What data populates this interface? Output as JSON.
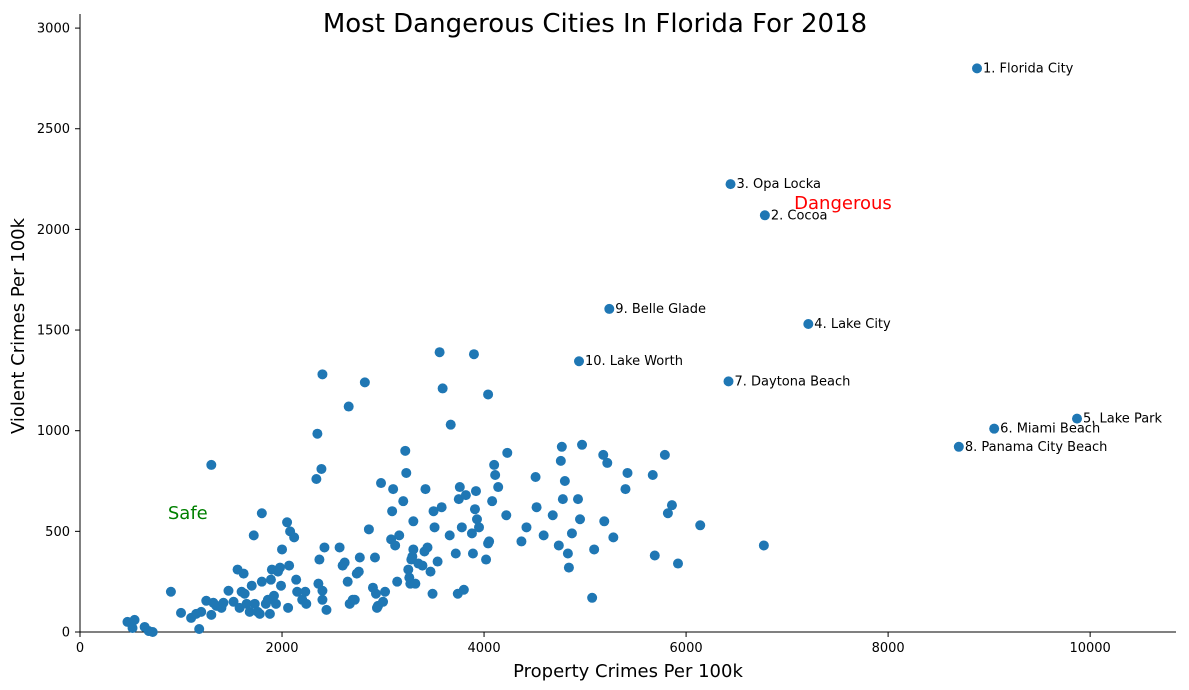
{
  "chart_data": {
    "type": "scatter",
    "title": "Most Dangerous Cities In Florida For 2018",
    "xlabel": "Property Crimes Per 100k",
    "ylabel": "Violent Crimes Per 100k",
    "xlim": [
      0,
      10850
    ],
    "ylim": [
      0,
      3070
    ],
    "xticks": [
      0,
      2000,
      4000,
      6000,
      8000,
      10000
    ],
    "yticks": [
      0,
      500,
      1000,
      1500,
      2000,
      2500,
      3000
    ],
    "marker_color": "#1f77b4",
    "points": [
      [
        470,
        50
      ],
      [
        520,
        20
      ],
      [
        540,
        60
      ],
      [
        640,
        25
      ],
      [
        680,
        5
      ],
      [
        720,
        0
      ],
      [
        900,
        200
      ],
      [
        1000,
        95
      ],
      [
        1100,
        70
      ],
      [
        1150,
        90
      ],
      [
        1200,
        100
      ],
      [
        1180,
        15
      ],
      [
        1250,
        155
      ],
      [
        1300,
        85
      ],
      [
        1320,
        145
      ],
      [
        1350,
        130
      ],
      [
        1400,
        120
      ],
      [
        1420,
        145
      ],
      [
        1470,
        205
      ],
      [
        1520,
        150
      ],
      [
        1560,
        310
      ],
      [
        1580,
        120
      ],
      [
        1600,
        200
      ],
      [
        1620,
        290
      ],
      [
        1630,
        190
      ],
      [
        1650,
        140
      ],
      [
        1680,
        100
      ],
      [
        1700,
        230
      ],
      [
        1720,
        480
      ],
      [
        1730,
        140
      ],
      [
        1760,
        100
      ],
      [
        1780,
        90
      ],
      [
        1800,
        250
      ],
      [
        1800,
        590
      ],
      [
        1840,
        140
      ],
      [
        1860,
        160
      ],
      [
        1880,
        90
      ],
      [
        1890,
        260
      ],
      [
        1900,
        310
      ],
      [
        1920,
        180
      ],
      [
        1940,
        140
      ],
      [
        1960,
        300
      ],
      [
        1980,
        320
      ],
      [
        1990,
        230
      ],
      [
        2000,
        410
      ],
      [
        2050,
        545
      ],
      [
        2060,
        120
      ],
      [
        2070,
        330
      ],
      [
        2080,
        500
      ],
      [
        2120,
        470
      ],
      [
        2140,
        260
      ],
      [
        2150,
        200
      ],
      [
        2200,
        160
      ],
      [
        2230,
        200
      ],
      [
        2240,
        140
      ],
      [
        2360,
        240
      ],
      [
        2370,
        360
      ],
      [
        2400,
        160
      ],
      [
        2400,
        205
      ],
      [
        2420,
        420
      ],
      [
        2440,
        110
      ],
      [
        2350,
        985
      ],
      [
        2340,
        760
      ],
      [
        2390,
        810
      ],
      [
        2400,
        1280
      ],
      [
        2570,
        420
      ],
      [
        2600,
        330
      ],
      [
        2620,
        345
      ],
      [
        2650,
        250
      ],
      [
        2670,
        140
      ],
      [
        2700,
        160
      ],
      [
        2720,
        160
      ],
      [
        2740,
        290
      ],
      [
        2760,
        300
      ],
      [
        2770,
        370
      ],
      [
        2660,
        1120
      ],
      [
        2820,
        1240
      ],
      [
        2860,
        510
      ],
      [
        2900,
        220
      ],
      [
        2920,
        370
      ],
      [
        2930,
        190
      ],
      [
        2940,
        120
      ],
      [
        2950,
        130
      ],
      [
        2980,
        740
      ],
      [
        3000,
        150
      ],
      [
        3020,
        200
      ],
      [
        3080,
        460
      ],
      [
        3090,
        600
      ],
      [
        3100,
        710
      ],
      [
        3120,
        430
      ],
      [
        3140,
        250
      ],
      [
        3160,
        480
      ],
      [
        3200,
        650
      ],
      [
        3220,
        900
      ],
      [
        3230,
        790
      ],
      [
        3250,
        310
      ],
      [
        3260,
        270
      ],
      [
        3270,
        240
      ],
      [
        3280,
        360
      ],
      [
        3290,
        375
      ],
      [
        3300,
        410
      ],
      [
        3300,
        550
      ],
      [
        3320,
        240
      ],
      [
        3350,
        340
      ],
      [
        3390,
        330
      ],
      [
        3410,
        400
      ],
      [
        3420,
        710
      ],
      [
        3440,
        420
      ],
      [
        3470,
        300
      ],
      [
        3490,
        190
      ],
      [
        3500,
        600
      ],
      [
        3510,
        520
      ],
      [
        3540,
        350
      ],
      [
        3560,
        1390
      ],
      [
        3580,
        620
      ],
      [
        3590,
        1210
      ],
      [
        3660,
        480
      ],
      [
        3670,
        1030
      ],
      [
        3720,
        390
      ],
      [
        3740,
        190
      ],
      [
        3750,
        660
      ],
      [
        3760,
        720
      ],
      [
        3780,
        520
      ],
      [
        3800,
        210
      ],
      [
        3820,
        680
      ],
      [
        3880,
        490
      ],
      [
        3890,
        390
      ],
      [
        3900,
        1380
      ],
      [
        3910,
        610
      ],
      [
        3920,
        700
      ],
      [
        3930,
        560
      ],
      [
        3950,
        520
      ],
      [
        4020,
        360
      ],
      [
        4040,
        440
      ],
      [
        4050,
        450
      ],
      [
        4040,
        1180
      ],
      [
        4080,
        650
      ],
      [
        4100,
        830
      ],
      [
        4110,
        780
      ],
      [
        4140,
        720
      ],
      [
        4220,
        580
      ],
      [
        4230,
        890
      ],
      [
        4370,
        450
      ],
      [
        4420,
        520
      ],
      [
        4510,
        770
      ],
      [
        4520,
        620
      ],
      [
        4590,
        480
      ],
      [
        4680,
        580
      ],
      [
        4740,
        430
      ],
      [
        4760,
        850
      ],
      [
        4770,
        920
      ],
      [
        4780,
        660
      ],
      [
        4800,
        750
      ],
      [
        4830,
        390
      ],
      [
        4840,
        320
      ],
      [
        4870,
        490
      ],
      [
        4930,
        660
      ],
      [
        4950,
        560
      ],
      [
        4970,
        930
      ],
      [
        5070,
        170
      ],
      [
        5090,
        410
      ],
      [
        5180,
        880
      ],
      [
        5190,
        550
      ],
      [
        5220,
        840
      ],
      [
        5280,
        470
      ],
      [
        5400,
        710
      ],
      [
        5420,
        790
      ],
      [
        5670,
        780
      ],
      [
        5690,
        380
      ],
      [
        5790,
        880
      ],
      [
        5820,
        590
      ],
      [
        5860,
        630
      ],
      [
        5920,
        340
      ],
      [
        6140,
        530
      ],
      [
        6770,
        430
      ],
      [
        1300,
        830
      ],
      [
        8880,
        2800
      ],
      [
        6780,
        2070
      ],
      [
        6440,
        2225
      ],
      [
        7210,
        1530
      ],
      [
        9870,
        1060
      ],
      [
        9050,
        1010
      ],
      [
        6420,
        1245
      ],
      [
        8700,
        920
      ],
      [
        5240,
        1605
      ],
      [
        4940,
        1345
      ]
    ],
    "annotations": [
      {
        "text": "1. Florida City",
        "x": 8880,
        "y": 2800
      },
      {
        "text": "2. Cocoa",
        "x": 6780,
        "y": 2070
      },
      {
        "text": "3. Opa Locka",
        "x": 6440,
        "y": 2225
      },
      {
        "text": "4. Lake City",
        "x": 7210,
        "y": 1530
      },
      {
        "text": "5. Lake Park",
        "x": 9870,
        "y": 1060
      },
      {
        "text": "6. Miami Beach",
        "x": 9050,
        "y": 1010
      },
      {
        "text": "7. Daytona Beach",
        "x": 6420,
        "y": 1245
      },
      {
        "text": "8. Panama City Beach",
        "x": 8700,
        "y": 920
      },
      {
        "text": "9. Belle Glade",
        "x": 5240,
        "y": 1605
      },
      {
        "text": "10. Lake Worth",
        "x": 4940,
        "y": 1345
      }
    ],
    "region_labels": [
      {
        "text": "Dangerous",
        "x": 7070,
        "y": 2130,
        "color": "#ff0000"
      },
      {
        "text": "Safe",
        "x": 870,
        "y": 590,
        "color": "#008000"
      }
    ]
  }
}
